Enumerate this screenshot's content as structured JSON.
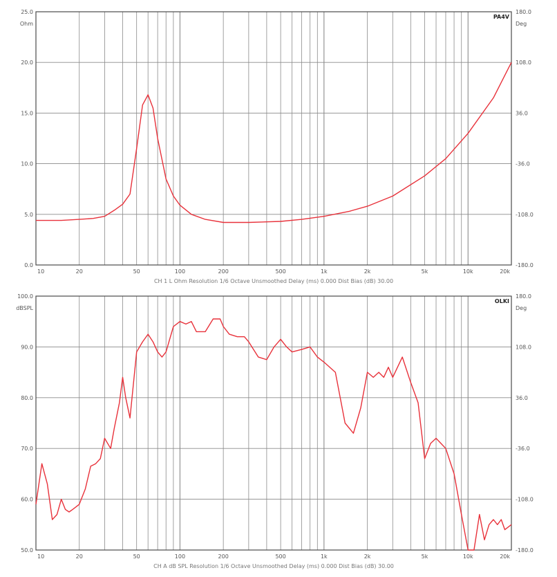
{
  "colors": {
    "trace": "#e8313a",
    "grid": "#8a8a8a",
    "frame": "#4a4a4a",
    "background": "#ffffff"
  },
  "chart_data": [
    {
      "type": "line",
      "tag": "PA4V",
      "caption": "CH 1 L   Ohm   Resolution 1/6 Octave   Unsmoothed   Delay (ms) 0.000   Dist Bias (dB) 30.00",
      "left_unit": "Ohm",
      "right_unit": "Deg",
      "x_scale": "log",
      "xlim": [
        10,
        20000
      ],
      "ylim": [
        0,
        25
      ],
      "x_tick_labels": [
        "10",
        "20",
        "50",
        "100",
        "200",
        "500",
        "1k",
        "2k",
        "5k",
        "10k",
        "20k"
      ],
      "y_tick_labels": [
        "0.0",
        "5.0",
        "10.0",
        "15.0",
        "20.0",
        "25.0"
      ],
      "right_tick_labels": [
        "-180.0",
        "-108.0",
        "-36.0",
        "36.0",
        "108.0",
        "180.0"
      ],
      "series": [
        {
          "x": [
            10,
            15,
            20,
            25,
            30,
            35,
            40,
            45,
            50,
            55,
            60,
            65,
            70,
            80,
            90,
            100,
            120,
            150,
            200,
            300,
            500,
            700,
            1000,
            1500,
            2000,
            3000,
            5000,
            7000,
            10000,
            15000,
            20000
          ],
          "values": [
            4.4,
            4.4,
            4.5,
            4.6,
            4.8,
            5.4,
            6.0,
            7.0,
            11.5,
            15.8,
            16.8,
            15.5,
            12.5,
            8.5,
            6.8,
            5.9,
            5.0,
            4.5,
            4.2,
            4.2,
            4.3,
            4.5,
            4.8,
            5.3,
            5.8,
            6.8,
            8.8,
            10.5,
            13.0,
            16.5,
            20.0
          ]
        }
      ]
    },
    {
      "type": "line",
      "tag": "OLKI",
      "caption": "CH A   dB SPL   Resolution 1/6 Octave   Unsmoothed   Delay (ms) 0.000   Dist Bias (dB) 30.00",
      "left_unit": "dBSPL",
      "right_unit": "Deg",
      "x_scale": "log",
      "xlim": [
        10,
        20000
      ],
      "ylim": [
        50,
        100
      ],
      "x_tick_labels": [
        "10",
        "20",
        "50",
        "100",
        "200",
        "500",
        "1k",
        "2k",
        "5k",
        "10k",
        "20k"
      ],
      "y_tick_labels": [
        "50.0",
        "60.0",
        "70.0",
        "80.0",
        "90.0",
        "100.0"
      ],
      "right_tick_labels": [
        "-180.0",
        "-108.0",
        "-36.0",
        "36.0",
        "108.0",
        "180.0"
      ],
      "series": [
        {
          "x": [
            10,
            11,
            12,
            13,
            14,
            15,
            16,
            17,
            18,
            19,
            20,
            22,
            24,
            26,
            28,
            30,
            33,
            35,
            38,
            40,
            42,
            45,
            48,
            50,
            55,
            60,
            65,
            70,
            75,
            80,
            90,
            100,
            110,
            120,
            130,
            150,
            170,
            190,
            200,
            220,
            250,
            280,
            300,
            350,
            400,
            450,
            500,
            550,
            600,
            700,
            800,
            900,
            1000,
            1200,
            1400,
            1600,
            1800,
            2000,
            2200,
            2400,
            2600,
            2800,
            3000,
            3500,
            4000,
            4500,
            5000,
            5500,
            6000,
            7000,
            8000,
            9000,
            10000,
            11000,
            12000,
            13000,
            14000,
            15000,
            16000,
            17000,
            18000,
            20000
          ],
          "values": [
            59,
            67,
            63,
            56,
            57,
            60,
            58,
            57.5,
            58,
            58.5,
            59,
            62,
            66.5,
            67,
            68,
            72,
            70,
            74,
            79,
            84,
            80,
            76,
            84,
            89,
            91,
            92.5,
            91,
            89,
            88,
            89,
            94,
            95,
            94.5,
            95,
            93,
            93,
            95.5,
            95.5,
            94,
            92.5,
            92,
            92,
            91,
            88,
            87.5,
            90,
            91.5,
            90,
            89,
            89.5,
            90,
            88,
            87,
            85,
            75,
            73,
            78,
            85,
            84,
            85,
            84,
            86,
            84,
            88,
            83,
            79,
            68,
            71,
            72,
            70,
            65,
            57,
            50,
            46,
            57,
            52,
            55,
            56,
            55,
            56,
            54,
            55
          ]
        }
      ]
    }
  ]
}
